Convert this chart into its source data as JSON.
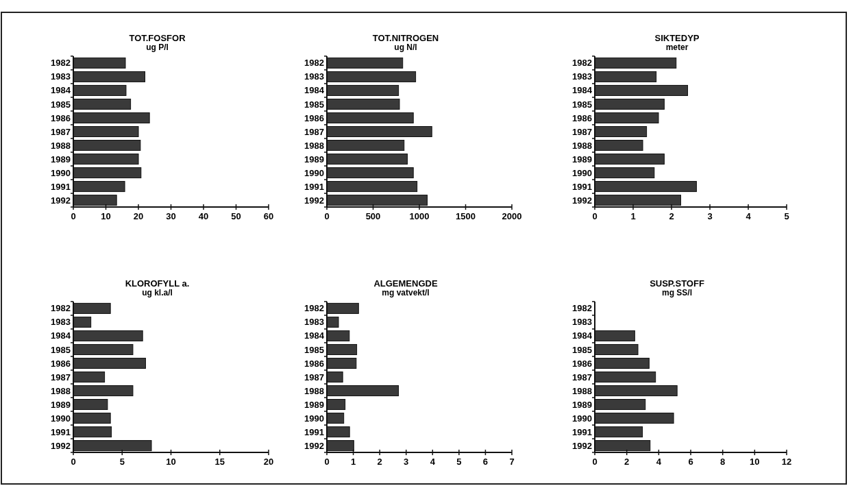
{
  "chart_data": [
    {
      "type": "bar",
      "orientation": "horizontal",
      "title": "TOT.FOSFOR",
      "subtitle": "ug P/l",
      "categories": [
        "1982",
        "1983",
        "1984",
        "1985",
        "1986",
        "1987",
        "1988",
        "1989",
        "1990",
        "1991",
        "1992"
      ],
      "values": [
        16,
        22,
        16.2,
        17.6,
        23.4,
        20,
        20.6,
        20,
        20.8,
        15.8,
        13.3
      ],
      "color": "#3a3a3a",
      "xlim": [
        0,
        60
      ],
      "xticks": [
        0,
        10,
        20,
        30,
        40,
        50,
        60
      ]
    },
    {
      "type": "bar",
      "orientation": "horizontal",
      "title": "TOT.NITROGEN",
      "subtitle": "ug N/l",
      "categories": [
        "1982",
        "1983",
        "1984",
        "1985",
        "1986",
        "1987",
        "1988",
        "1989",
        "1990",
        "1991",
        "1992"
      ],
      "values": [
        820,
        960,
        775,
        785,
        935,
        1135,
        835,
        870,
        935,
        975,
        1085
      ],
      "color": "#3a3a3a",
      "xlim": [
        0,
        2000
      ],
      "xticks": [
        0,
        500,
        1000,
        1500,
        2000
      ]
    },
    {
      "type": "bar",
      "orientation": "horizontal",
      "title": "SIKTEDYP",
      "subtitle": "meter",
      "categories": [
        "1982",
        "1983",
        "1984",
        "1985",
        "1986",
        "1987",
        "1988",
        "1989",
        "1990",
        "1991",
        "1992"
      ],
      "values": [
        2.12,
        1.6,
        2.42,
        1.81,
        1.66,
        1.35,
        1.25,
        1.81,
        1.55,
        2.65,
        2.24
      ],
      "color": "#3a3a3a",
      "xlim": [
        0,
        5
      ],
      "xticks": [
        0,
        1,
        2,
        3,
        4,
        5
      ]
    },
    {
      "type": "bar",
      "orientation": "horizontal",
      "title": "KLOROFYLL a.",
      "subtitle": "ug kl.a/l",
      "categories": [
        "1982",
        "1983",
        "1984",
        "1985",
        "1986",
        "1987",
        "1988",
        "1989",
        "1990",
        "1991",
        "1992"
      ],
      "values": [
        3.8,
        1.8,
        7.1,
        6.1,
        7.4,
        3.2,
        6.1,
        3.5,
        3.8,
        3.9,
        8
      ],
      "color": "#3a3a3a",
      "xlim": [
        0,
        20
      ],
      "xticks": [
        0,
        5,
        10,
        15,
        20
      ]
    },
    {
      "type": "bar",
      "orientation": "horizontal",
      "title": "ALGEMENGDE",
      "subtitle": "mg vatvekt/l",
      "categories": [
        "1982",
        "1983",
        "1984",
        "1985",
        "1986",
        "1987",
        "1988",
        "1989",
        "1990",
        "1991",
        "1992"
      ],
      "values": [
        1.2,
        0.44,
        0.85,
        1.13,
        1.11,
        0.6,
        2.71,
        0.69,
        0.64,
        0.86,
        1.02
      ],
      "color": "#3a3a3a",
      "xlim": [
        0,
        7
      ],
      "xticks": [
        0,
        1,
        2,
        3,
        4,
        5,
        6,
        7
      ]
    },
    {
      "type": "bar",
      "orientation": "horizontal",
      "title": "SUSP.STOFF",
      "subtitle": "mg SS/l",
      "categories": [
        "1982",
        "1983",
        "1984",
        "1985",
        "1986",
        "1987",
        "1988",
        "1989",
        "1990",
        "1991",
        "1992"
      ],
      "values": [
        null,
        null,
        2.5,
        2.7,
        3.4,
        3.8,
        5.15,
        3.16,
        4.93,
        2.98,
        3.46
      ],
      "color": "#3a3a3a",
      "xlim": [
        0,
        12
      ],
      "xticks": [
        0,
        2,
        4,
        6,
        8,
        10,
        12
      ]
    }
  ]
}
